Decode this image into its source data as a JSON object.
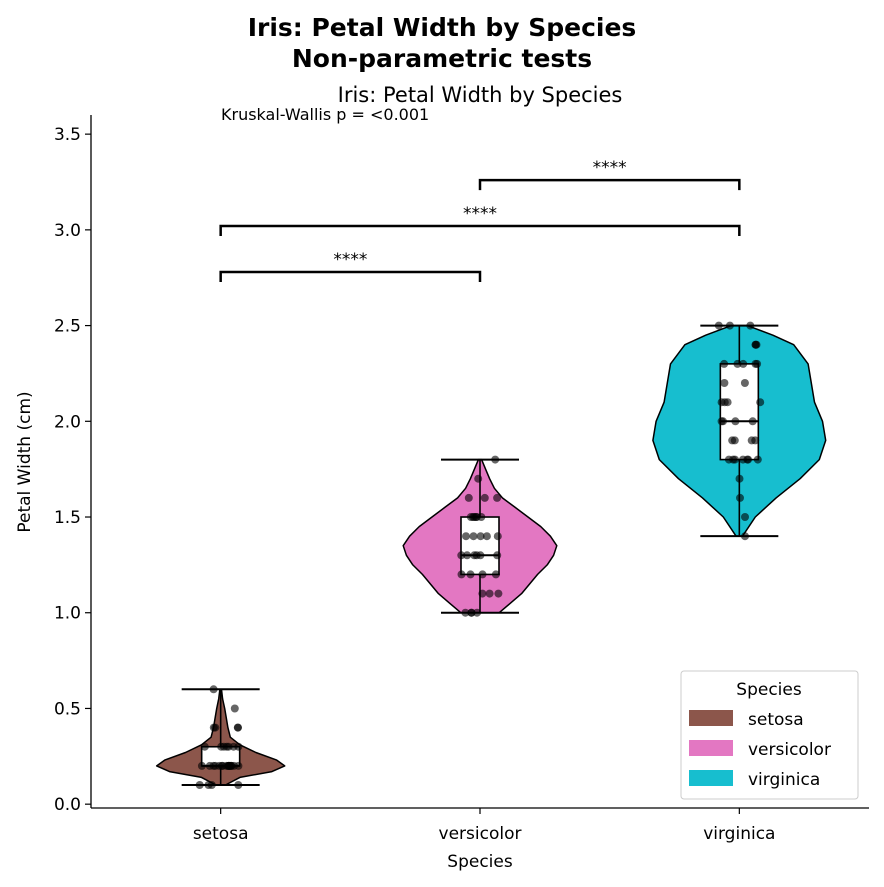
{
  "chart_data": {
    "type": "violin",
    "suptitle_lines": [
      "Iris: Petal Width by Species",
      "Non-parametric tests"
    ],
    "title": "Iris: Petal Width by Species",
    "xlabel": "Species",
    "ylabel": "Petal Width (cm)",
    "ylim": [
      -0.02,
      3.6
    ],
    "yticks": [
      0.0,
      0.5,
      1.0,
      1.5,
      2.0,
      2.5,
      3.0,
      3.5
    ],
    "ytick_labels": [
      "0.0",
      "0.5",
      "1.0",
      "1.5",
      "2.0",
      "2.5",
      "3.0",
      "3.5"
    ],
    "categories": [
      "setosa",
      "versicolor",
      "virginica"
    ],
    "annotation": "Kruskal-Wallis p = <0.001",
    "series": [
      {
        "name": "setosa",
        "color": "#8c564b",
        "min": 0.1,
        "q1": 0.2,
        "median": 0.2,
        "q3": 0.3,
        "max": 0.6,
        "kde": [
          [
            0.1,
            0.03
          ],
          [
            0.14,
            0.12
          ],
          [
            0.17,
            0.32
          ],
          [
            0.2,
            0.4
          ],
          [
            0.23,
            0.35
          ],
          [
            0.27,
            0.22
          ],
          [
            0.31,
            0.12
          ],
          [
            0.35,
            0.06
          ],
          [
            0.4,
            0.045
          ],
          [
            0.45,
            0.035
          ],
          [
            0.5,
            0.025
          ],
          [
            0.55,
            0.012
          ],
          [
            0.6,
            0.005
          ]
        ],
        "points": [
          0.1,
          0.1,
          0.1,
          0.1,
          0.2,
          0.2,
          0.2,
          0.2,
          0.2,
          0.2,
          0.2,
          0.2,
          0.2,
          0.2,
          0.2,
          0.2,
          0.2,
          0.2,
          0.2,
          0.2,
          0.2,
          0.3,
          0.3,
          0.3,
          0.3,
          0.3,
          0.3,
          0.3,
          0.4,
          0.4,
          0.4,
          0.4,
          0.5,
          0.6
        ]
      },
      {
        "name": "versicolor",
        "color": "#e377c2",
        "min": 1.0,
        "q1": 1.2,
        "median": 1.3,
        "q3": 1.5,
        "max": 1.8,
        "kde": [
          [
            1.0,
            0.12
          ],
          [
            1.05,
            0.19
          ],
          [
            1.1,
            0.26
          ],
          [
            1.15,
            0.31
          ],
          [
            1.2,
            0.36
          ],
          [
            1.25,
            0.42
          ],
          [
            1.3,
            0.46
          ],
          [
            1.35,
            0.48
          ],
          [
            1.4,
            0.44
          ],
          [
            1.45,
            0.38
          ],
          [
            1.5,
            0.3
          ],
          [
            1.55,
            0.22
          ],
          [
            1.6,
            0.14
          ],
          [
            1.65,
            0.09
          ],
          [
            1.7,
            0.06
          ],
          [
            1.75,
            0.035
          ],
          [
            1.8,
            0.01
          ]
        ],
        "points": [
          1.0,
          1.0,
          1.0,
          1.0,
          1.1,
          1.1,
          1.1,
          1.2,
          1.2,
          1.2,
          1.2,
          1.3,
          1.3,
          1.3,
          1.3,
          1.3,
          1.3,
          1.4,
          1.4,
          1.4,
          1.4,
          1.4,
          1.5,
          1.5,
          1.5,
          1.5,
          1.5,
          1.5,
          1.6,
          1.6,
          1.6,
          1.7,
          1.8
        ]
      },
      {
        "name": "virginica",
        "color": "#17becf",
        "min": 1.4,
        "q1": 1.8,
        "median": 2.0,
        "q3": 2.3,
        "max": 2.5,
        "kde": [
          [
            1.4,
            0.02
          ],
          [
            1.5,
            0.1
          ],
          [
            1.6,
            0.23
          ],
          [
            1.7,
            0.38
          ],
          [
            1.8,
            0.5
          ],
          [
            1.9,
            0.54
          ],
          [
            2.0,
            0.52
          ],
          [
            2.1,
            0.47
          ],
          [
            2.2,
            0.45
          ],
          [
            2.3,
            0.43
          ],
          [
            2.4,
            0.34
          ],
          [
            2.45,
            0.21
          ],
          [
            2.5,
            0.05
          ]
        ],
        "points": [
          1.4,
          1.5,
          1.6,
          1.7,
          1.8,
          1.8,
          1.8,
          1.8,
          1.8,
          1.8,
          1.8,
          1.9,
          1.9,
          1.9,
          1.9,
          2.0,
          2.0,
          2.0,
          2.0,
          2.1,
          2.1,
          2.1,
          2.1,
          2.2,
          2.2,
          2.3,
          2.3,
          2.3,
          2.3,
          2.3,
          2.4,
          2.4,
          2.4,
          2.5,
          2.5,
          2.5
        ]
      }
    ],
    "comparisons": [
      {
        "from": 0,
        "to": 1,
        "y": 2.78,
        "label": "****"
      },
      {
        "from": 0,
        "to": 2,
        "y": 3.02,
        "label": "****"
      },
      {
        "from": 1,
        "to": 2,
        "y": 3.26,
        "label": "****"
      }
    ],
    "legend": {
      "title": "Species",
      "placement": "lower-right"
    }
  }
}
